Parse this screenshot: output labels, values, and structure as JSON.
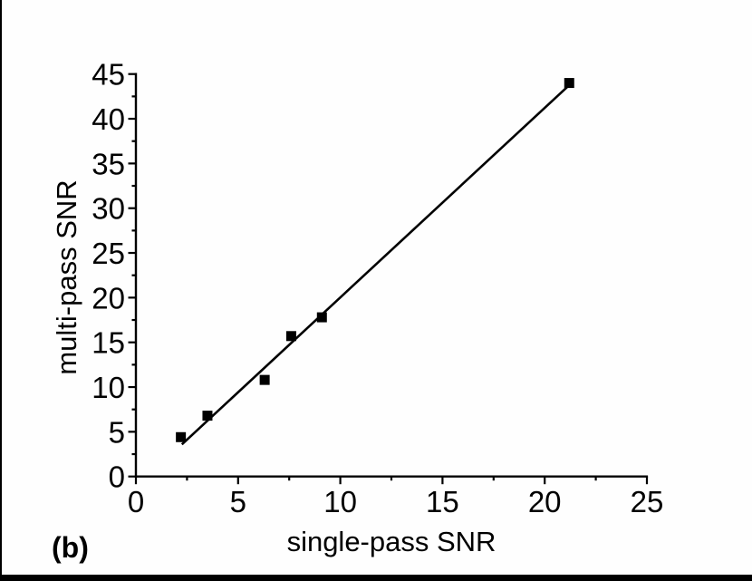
{
  "figure_label": "(b)",
  "chart_data": {
    "type": "scatter",
    "title": "",
    "xlabel": "single-pass SNR",
    "ylabel": "multi-pass SNR",
    "xlim": [
      0,
      25
    ],
    "ylim": [
      0,
      45
    ],
    "x_tick_values": [
      0,
      5,
      10,
      15,
      20,
      25
    ],
    "x_tick_labels": [
      "0",
      "5",
      "10",
      "15",
      "20",
      "25"
    ],
    "x_minor_tick_values": [
      2.5,
      7.5,
      12.5,
      17.5,
      22.5
    ],
    "y_tick_values": [
      0,
      5,
      10,
      15,
      20,
      25,
      30,
      35,
      40,
      45
    ],
    "y_tick_labels": [
      "0",
      "5",
      "10",
      "15",
      "20",
      "25",
      "30",
      "35",
      "40",
      "45"
    ],
    "y_minor_tick_values": [
      2.5,
      7.5,
      12.5,
      17.5,
      22.5,
      27.5,
      32.5,
      37.5,
      42.5
    ],
    "grid": false,
    "legend": null,
    "series": [
      {
        "name": "measured-points",
        "type": "scatter",
        "marker": "filled-square",
        "color": "#000000",
        "points": [
          [
            2.2,
            4.4
          ],
          [
            3.5,
            6.8
          ],
          [
            6.3,
            10.8
          ],
          [
            7.6,
            15.7
          ],
          [
            9.1,
            17.8
          ],
          [
            21.2,
            44.0
          ]
        ]
      },
      {
        "name": "linear-fit",
        "type": "line",
        "color": "#000000",
        "slope": 2.12,
        "intercept": -1.18,
        "x_range": [
          2.25,
          21.2
        ]
      }
    ],
    "axis_color": "#000000",
    "text_color": "#000000",
    "background": "#fefefe"
  }
}
